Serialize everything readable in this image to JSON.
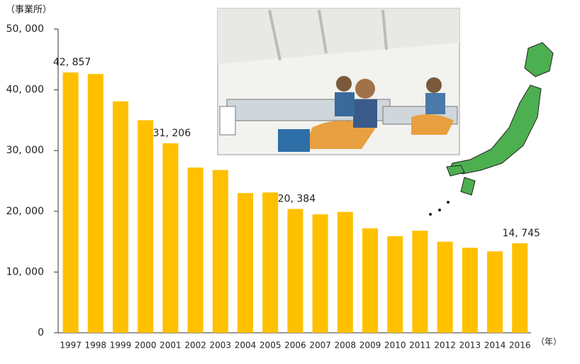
{
  "chart_data": {
    "type": "bar",
    "y_axis_label": "（事業所）",
    "x_axis_label": "（年）",
    "categories": [
      "1997",
      "1998",
      "1999",
      "2000",
      "2001",
      "2002",
      "2003",
      "2004",
      "2005",
      "2006",
      "2007",
      "2008",
      "2009",
      "2010",
      "2011",
      "2012",
      "2013",
      "2014",
      "2016"
    ],
    "values": [
      42857,
      42600,
      38100,
      35000,
      31206,
      27200,
      26800,
      23000,
      23100,
      20384,
      19500,
      19900,
      17200,
      15900,
      16800,
      15000,
      14000,
      13400,
      14745
    ],
    "value_labels": [
      "42, 857",
      null,
      null,
      null,
      "31, 206",
      null,
      null,
      null,
      null,
      "20, 384",
      null,
      null,
      null,
      null,
      null,
      null,
      null,
      null,
      "14, 745"
    ],
    "color": "#ffc000",
    "ylim": [
      0,
      50000
    ],
    "yticks": [
      0,
      {
        "value": 10000,
        "label": "10, 000"
      },
      {
        "value": 20000,
        "label": "20, 000"
      },
      {
        "value": 30000,
        "label": "30, 000"
      },
      {
        "value": 40000,
        "label": "40, 000"
      },
      {
        "value": 50000,
        "label": "50, 000"
      }
    ]
  }
}
